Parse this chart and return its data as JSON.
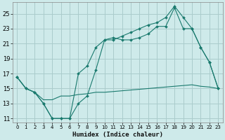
{
  "xlabel": "Humidex (Indice chaleur)",
  "bg_color": "#ceeaea",
  "grid_color": "#aacccc",
  "line_color": "#1a7a6e",
  "xlim": [
    -0.5,
    23.5
  ],
  "ylim": [
    10.5,
    26.5
  ],
  "xticks": [
    0,
    1,
    2,
    3,
    4,
    5,
    6,
    7,
    8,
    9,
    10,
    11,
    12,
    13,
    14,
    15,
    16,
    17,
    18,
    19,
    20,
    21,
    22,
    23
  ],
  "yticks": [
    11,
    13,
    15,
    17,
    19,
    21,
    23,
    25
  ],
  "line1_x": [
    0,
    1,
    2,
    3,
    4,
    5,
    6,
    7,
    8,
    9,
    10,
    11,
    12,
    13,
    14,
    15,
    16,
    17,
    18,
    19,
    20,
    21,
    22,
    23
  ],
  "line1_y": [
    16.5,
    15.0,
    14.5,
    13.0,
    11.0,
    11.0,
    11.0,
    13.0,
    14.0,
    17.5,
    21.5,
    21.8,
    21.5,
    21.5,
    21.8,
    22.3,
    23.3,
    23.3,
    25.8,
    23.0,
    23.0,
    20.5,
    18.5,
    15.0
  ],
  "line2_x": [
    0,
    1,
    2,
    3,
    4,
    5,
    6,
    7,
    8,
    9,
    10,
    11,
    12,
    13,
    14,
    15,
    16,
    17,
    18,
    19,
    20,
    21,
    22,
    23
  ],
  "line2_y": [
    16.5,
    15.0,
    14.5,
    13.0,
    11.0,
    11.0,
    11.0,
    17.0,
    18.0,
    20.5,
    21.5,
    21.5,
    22.0,
    22.5,
    23.0,
    23.5,
    23.8,
    24.5,
    26.0,
    24.5,
    23.0,
    20.5,
    18.5,
    15.0
  ],
  "line3_x": [
    0,
    1,
    2,
    3,
    4,
    5,
    6,
    7,
    8,
    9,
    10,
    11,
    12,
    13,
    14,
    15,
    16,
    17,
    18,
    19,
    20,
    21,
    22,
    23
  ],
  "line3_y": [
    16.5,
    15.0,
    14.5,
    13.5,
    13.5,
    14.0,
    14.0,
    14.2,
    14.3,
    14.5,
    14.5,
    14.6,
    14.7,
    14.8,
    14.9,
    15.0,
    15.1,
    15.2,
    15.3,
    15.4,
    15.5,
    15.3,
    15.2,
    15.0
  ]
}
